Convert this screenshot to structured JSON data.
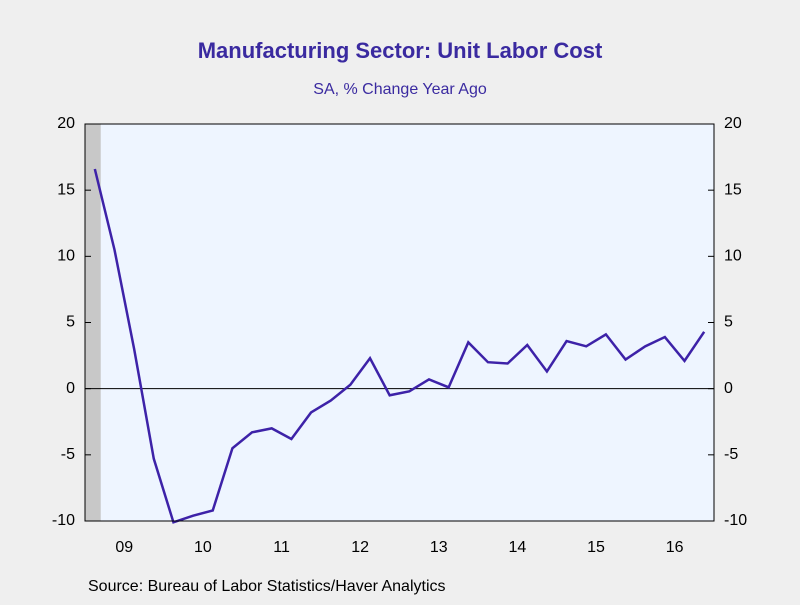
{
  "chart_data": {
    "type": "line",
    "title": "Manufacturing Sector: Unit Labor Cost",
    "subtitle": "SA, % Change Year Ago",
    "source": "Source:  Bureau of Labor Statistics/Haver Analytics",
    "x": [
      2009.125,
      2009.375,
      2009.625,
      2009.875,
      2010.125,
      2010.375,
      2010.625,
      2010.875,
      2011.125,
      2011.375,
      2011.625,
      2011.875,
      2012.125,
      2012.375,
      2012.625,
      2012.875,
      2013.125,
      2013.375,
      2013.625,
      2013.875,
      2014.125,
      2014.375,
      2014.625,
      2014.875,
      2015.125,
      2015.375,
      2015.625,
      2015.875,
      2016.125,
      2016.375,
      2016.625,
      2016.875
    ],
    "series": [
      {
        "color": "#3d22a8",
        "values": [
          16.6,
          10.5,
          3,
          -5.3,
          -10.1,
          -9.6,
          -9.2,
          -4.5,
          -3.3,
          -3.0,
          -3.8,
          -1.8,
          -0.9,
          0.3,
          2.3,
          -0.5,
          -0.2,
          0.7,
          0.1,
          3.5,
          2.0,
          1.9,
          3.3,
          1.3,
          3.6,
          3.2,
          4.1,
          2.2,
          3.2,
          3.9,
          2.1,
          4.3
        ]
      }
    ],
    "xlim": [
      2009,
      2017
    ],
    "xticks": [
      {
        "value": 2009.5,
        "label": "09"
      },
      {
        "value": 2010.5,
        "label": "10"
      },
      {
        "value": 2011.5,
        "label": "11"
      },
      {
        "value": 2012.5,
        "label": "12"
      },
      {
        "value": 2013.5,
        "label": "13"
      },
      {
        "value": 2014.5,
        "label": "14"
      },
      {
        "value": 2015.5,
        "label": "15"
      },
      {
        "value": 2016.5,
        "label": "16"
      }
    ],
    "ylim": [
      -10,
      20
    ],
    "yticks": [
      -10,
      -5,
      0,
      5,
      10,
      15,
      20
    ],
    "y2lim": [
      -10,
      20
    ],
    "y2ticks": [
      -10,
      -5,
      0,
      5,
      10,
      15,
      20
    ],
    "recession": [
      2009,
      2009.2
    ]
  }
}
